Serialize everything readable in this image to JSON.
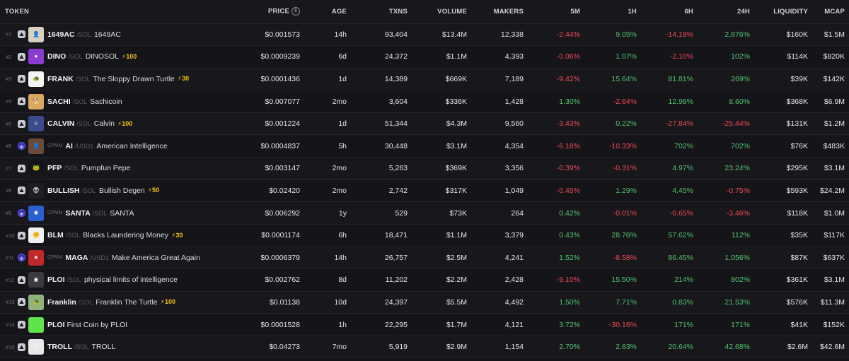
{
  "colors": {
    "positive": "#53c46d",
    "negative": "#ee4b55",
    "boost": "#f5c518"
  },
  "columns": {
    "token": "TOKEN",
    "price": "PRICE",
    "age": "AGE",
    "txns": "TXNS",
    "volume": "VOLUME",
    "makers": "MAKERS",
    "m5": "5M",
    "h1": "1H",
    "h6": "6H",
    "h24": "24H",
    "liquidity": "LIQUIDITY",
    "mcap": "MCAP"
  },
  "rows": [
    {
      "rank": "#1",
      "cpmm": "",
      "symbol": "1649AC",
      "quote": "/SOL",
      "name": "1649AC",
      "boost": "",
      "price": "$0.001573",
      "age": "14h",
      "txns": "93,404",
      "volume": "$13.4M",
      "makers": "12,338",
      "m5": "-2.44%",
      "h1": "9.05%",
      "h6": "-14.18%",
      "h24": "2,876%",
      "liquidity": "$160K",
      "mcap": "$1.5M",
      "avatar_color": "#d8d0c0",
      "avatar_icon": "👤"
    },
    {
      "rank": "#2",
      "cpmm": "",
      "symbol": "DINO",
      "quote": "/SOL",
      "name": "DINOSOL",
      "boost": "⚡100",
      "price": "$0.0009239",
      "age": "6d",
      "txns": "24,372",
      "volume": "$1.1M",
      "makers": "4,393",
      "m5": "-0.06%",
      "h1": "1.07%",
      "h6": "-2.10%",
      "h24": "102%",
      "liquidity": "$114K",
      "mcap": "$820K",
      "avatar_color": "#8a3ccf",
      "avatar_icon": "●"
    },
    {
      "rank": "#3",
      "cpmm": "",
      "symbol": "FRANK",
      "quote": "/SOL",
      "name": "The Sloppy Drawn Turtle",
      "boost": "⚡30",
      "price": "$0.0001436",
      "age": "1d",
      "txns": "14,389",
      "volume": "$669K",
      "makers": "7,189",
      "m5": "-9.42%",
      "h1": "15.64%",
      "h6": "81.81%",
      "h24": "269%",
      "liquidity": "$39K",
      "mcap": "$142K",
      "avatar_color": "#f4f4f4",
      "avatar_icon": "🐢"
    },
    {
      "rank": "#4",
      "cpmm": "",
      "symbol": "SACHI",
      "quote": "/SOL",
      "name": "Sachicoin",
      "boost": "",
      "price": "$0.007077",
      "age": "2mo",
      "txns": "3,604",
      "volume": "$336K",
      "makers": "1,428",
      "m5": "1.30%",
      "h1": "-2.64%",
      "h6": "12.98%",
      "h24": "8.60%",
      "liquidity": "$368K",
      "mcap": "$6.9M",
      "avatar_color": "#d9a860",
      "avatar_icon": "🐕"
    },
    {
      "rank": "#5",
      "cpmm": "",
      "symbol": "CALVIN",
      "quote": "/SOL",
      "name": "Calvin",
      "boost": "⚡100",
      "price": "$0.001224",
      "age": "1d",
      "txns": "51,344",
      "volume": "$4.3M",
      "makers": "9,560",
      "m5": "-3.43%",
      "h1": "0.22%",
      "h6": "-27.84%",
      "h24": "-25.44%",
      "liquidity": "$131K",
      "mcap": "$1.2M",
      "avatar_color": "#3a4a8a",
      "avatar_icon": "☺"
    },
    {
      "rank": "#6",
      "cpmm": "CPMM",
      "symbol": "AI",
      "quote": "/USD1",
      "name": "American Intelligence",
      "boost": "",
      "price": "$0.0004837",
      "age": "5h",
      "txns": "30,448",
      "volume": "$3.1M",
      "makers": "4,354",
      "m5": "-6.18%",
      "h1": "-10.33%",
      "h6": "702%",
      "h24": "702%",
      "liquidity": "$76K",
      "mcap": "$483K",
      "avatar_color": "#6a4a3a",
      "avatar_icon": "👤"
    },
    {
      "rank": "#7",
      "cpmm": "",
      "symbol": "PFP",
      "quote": "/SOL",
      "name": "Pumpfun Pepe",
      "boost": "",
      "price": "$0.003147",
      "age": "2mo",
      "txns": "5,263",
      "volume": "$369K",
      "makers": "3,356",
      "m5": "-0.39%",
      "h1": "-0.31%",
      "h6": "4.97%",
      "h24": "23.24%",
      "liquidity": "$295K",
      "mcap": "$3.1M",
      "avatar_color": "#141419",
      "avatar_icon": "🐸"
    },
    {
      "rank": "#8",
      "cpmm": "",
      "symbol": "BULLISH",
      "quote": "/SOL",
      "name": "Bullish Degen",
      "boost": "⚡50",
      "price": "$0.02420",
      "age": "2mo",
      "txns": "2,742",
      "volume": "$317K",
      "makers": "1,049",
      "m5": "-0.45%",
      "h1": "1.29%",
      "h6": "4.45%",
      "h24": "-0.75%",
      "liquidity": "$593K",
      "mcap": "$24.2M",
      "avatar_color": "#1d1d22",
      "avatar_icon": "👽"
    },
    {
      "rank": "#9",
      "cpmm": "CPMM",
      "symbol": "SANTA",
      "quote": "/SOL",
      "name": "SANTA",
      "boost": "",
      "price": "$0.006292",
      "age": "1y",
      "txns": "529",
      "volume": "$73K",
      "makers": "264",
      "m5": "0.42%",
      "h1": "-0.01%",
      "h6": "-0.65%",
      "h24": "-3.46%",
      "liquidity": "$118K",
      "mcap": "$1.0M",
      "avatar_color": "#2a5fd0",
      "avatar_icon": "✱"
    },
    {
      "rank": "#10",
      "cpmm": "",
      "symbol": "BLM",
      "quote": "/SOL",
      "name": "Blacks Laundering Money",
      "boost": "⚡30",
      "price": "$0.0001174",
      "age": "6h",
      "txns": "18,471",
      "volume": "$1.1M",
      "makers": "3,379",
      "m5": "0.43%",
      "h1": "28.76%",
      "h6": "57.62%",
      "h24": "112%",
      "liquidity": "$35K",
      "mcap": "$117K",
      "avatar_color": "#f0f0f0",
      "avatar_icon": "✊"
    },
    {
      "rank": "#11",
      "cpmm": "CPMM",
      "symbol": "MAGA",
      "quote": "/USD1",
      "name": "Make America Great Again",
      "boost": "",
      "price": "$0.0006379",
      "age": "14h",
      "txns": "26,757",
      "volume": "$2.5M",
      "makers": "4,241",
      "m5": "1.52%",
      "h1": "-8.58%",
      "h6": "86.45%",
      "h24": "1,056%",
      "liquidity": "$87K",
      "mcap": "$637K",
      "avatar_color": "#c0282a",
      "avatar_icon": "★"
    },
    {
      "rank": "#12",
      "cpmm": "",
      "symbol": "PLOI",
      "quote": "/SOL",
      "name": "physical limits of intelligence",
      "boost": "",
      "price": "$0.002762",
      "age": "8d",
      "txns": "11,202",
      "volume": "$2.2M",
      "makers": "2,428",
      "m5": "-9.10%",
      "h1": "15.50%",
      "h6": "214%",
      "h24": "802%",
      "liquidity": "$361K",
      "mcap": "$3.1M",
      "avatar_color": "#3a3a40",
      "avatar_icon": "◉"
    },
    {
      "rank": "#13",
      "cpmm": "",
      "symbol": "Franklin",
      "quote": "/SOL",
      "name": "Franklin The Turtle",
      "boost": "⚡100",
      "price": "$0.01138",
      "age": "10d",
      "txns": "24,397",
      "volume": "$5.5M",
      "makers": "4,492",
      "m5": "1.50%",
      "h1": "7.71%",
      "h6": "0.83%",
      "h24": "21.53%",
      "liquidity": "$576K",
      "mcap": "$11.3M",
      "avatar_color": "#8fb27a",
      "avatar_icon": "🐢"
    },
    {
      "rank": "#14",
      "cpmm": "",
      "symbol": "PLOI",
      "quote": "",
      "name": "First Coin by PLOI",
      "boost": "",
      "price": "$0.0001528",
      "age": "1h",
      "txns": "22,295",
      "volume": "$1.7M",
      "makers": "4,121",
      "m5": "3.72%",
      "h1": "-30.16%",
      "h6": "171%",
      "h24": "171%",
      "liquidity": "$41K",
      "mcap": "$152K",
      "avatar_color": "#5ee34a",
      "avatar_icon": ""
    },
    {
      "rank": "#15",
      "cpmm": "",
      "symbol": "TROLL",
      "quote": "/SOL",
      "name": "TROLL",
      "boost": "",
      "price": "$0.04273",
      "age": "7mo",
      "txns": "5,919",
      "volume": "$2.9M",
      "makers": "1,154",
      "m5": "2.70%",
      "h1": "2.63%",
      "h6": "20.64%",
      "h24": "42.68%",
      "liquidity": "$2.6M",
      "mcap": "$42.6M",
      "avatar_color": "#e8e8e8",
      "avatar_icon": "☺"
    }
  ]
}
